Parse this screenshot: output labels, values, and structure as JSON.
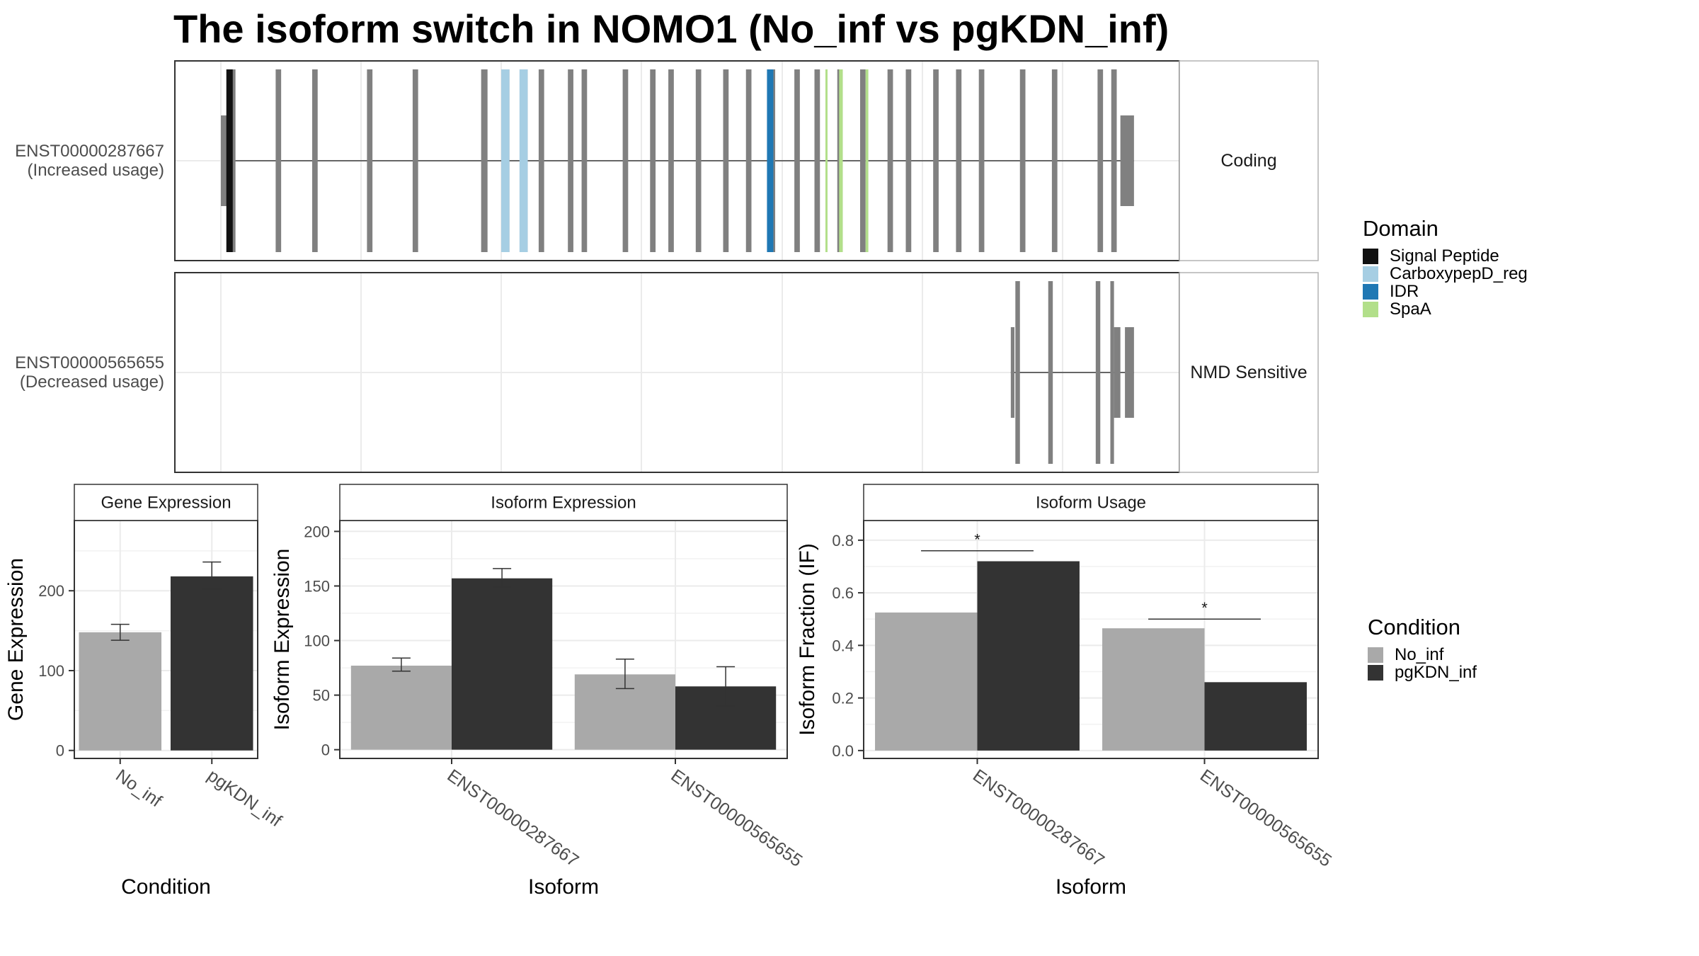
{
  "title": "The isoform switch in NOMO1 (No_inf vs pgKDN_inf)",
  "colors": {
    "exon": "#808080",
    "no_inf": "#a9a9a9",
    "pgkdn_inf": "#333333",
    "signal_peptide": "#111111",
    "carboxypepd_reg": "#a6cee3",
    "idr": "#1f78b4",
    "spaa": "#b2df8a"
  },
  "transcripts": [
    {
      "id": "ENST00000287667",
      "usage": "(Increased usage)",
      "type": "Coding",
      "exons": [
        [
          0.0,
          0.009
        ],
        [
          0.007,
          0.016
        ],
        [
          0.06,
          0.066
        ],
        [
          0.1,
          0.106
        ],
        [
          0.16,
          0.166
        ],
        [
          0.21,
          0.216
        ],
        [
          0.285,
          0.292
        ],
        [
          0.31,
          0.316
        ],
        [
          0.33,
          0.336
        ],
        [
          0.348,
          0.354
        ],
        [
          0.38,
          0.386
        ],
        [
          0.395,
          0.401
        ],
        [
          0.44,
          0.446
        ],
        [
          0.47,
          0.476
        ],
        [
          0.49,
          0.496
        ],
        [
          0.52,
          0.526
        ],
        [
          0.55,
          0.556
        ],
        [
          0.575,
          0.581
        ],
        [
          0.6,
          0.607
        ],
        [
          0.628,
          0.634
        ],
        [
          0.65,
          0.656
        ],
        [
          0.675,
          0.681
        ],
        [
          0.7,
          0.706
        ],
        [
          0.73,
          0.736
        ],
        [
          0.75,
          0.756
        ],
        [
          0.78,
          0.786
        ],
        [
          0.805,
          0.811
        ],
        [
          0.83,
          0.836
        ],
        [
          0.875,
          0.881
        ],
        [
          0.91,
          0.916
        ],
        [
          0.96,
          0.966
        ],
        [
          0.975,
          0.981
        ],
        [
          0.985,
          0.9999
        ]
      ],
      "domains": [
        {
          "name": "Signal Peptide",
          "color": "#111111",
          "bands": [
            [
              0.006,
              0.013
            ]
          ]
        },
        {
          "name": "CarboxypepD_reg",
          "color": "#a6cee3",
          "bands": [
            [
              0.307,
              0.316
            ],
            [
              0.327,
              0.336
            ]
          ]
        },
        {
          "name": "IDR",
          "color": "#1f78b4",
          "bands": [
            [
              0.598,
              0.605
            ]
          ]
        },
        {
          "name": "SpaA",
          "color": "#b2df8a",
          "bands": [
            [
              0.662,
              0.664
            ],
            [
              0.677,
              0.681
            ],
            [
              0.706,
              0.709
            ]
          ]
        }
      ]
    },
    {
      "id": "ENST00000565655",
      "usage": "(Decreased usage)",
      "type": "NMD Sensitive",
      "exons": [
        [
          0.865,
          0.869
        ],
        [
          0.87,
          0.875
        ],
        [
          0.906,
          0.911
        ],
        [
          0.958,
          0.963
        ],
        [
          0.974,
          0.978
        ],
        [
          0.978,
          0.985
        ],
        [
          0.99,
          0.9999
        ]
      ]
    }
  ],
  "legend_domain": {
    "title": "Domain",
    "items": [
      {
        "label": "Signal Peptide",
        "color": "#111111"
      },
      {
        "label": "CarboxypepD_reg",
        "color": "#a6cee3"
      },
      {
        "label": "IDR",
        "color": "#1f78b4"
      },
      {
        "label": "SpaA",
        "color": "#b2df8a"
      }
    ]
  },
  "legend_condition": {
    "title": "Condition",
    "items": [
      {
        "label": "No_inf",
        "color": "#a9a9a9"
      },
      {
        "label": "pgKDN_inf",
        "color": "#333333"
      }
    ]
  },
  "chart_data": [
    {
      "type": "bar",
      "title": "Gene Expression",
      "xlabel": "Condition",
      "ylabel": "Gene Expression",
      "categories": [
        "No_inf",
        "pgKDN_inf"
      ],
      "values": [
        148,
        218
      ],
      "error_low": [
        138,
        202
      ],
      "error_high": [
        158,
        236
      ],
      "ylim": [
        -10,
        288
      ],
      "yticks": [
        0,
        100,
        200
      ]
    },
    {
      "type": "bar",
      "title": "Isoform Expression",
      "xlabel": "Isoform",
      "ylabel": "Isoform Expression",
      "categories": [
        "ENST00000287667",
        "ENST00000565655"
      ],
      "series": [
        {
          "name": "No_inf",
          "values": [
            77,
            69
          ],
          "error_low": [
            72,
            56
          ],
          "error_high": [
            84,
            83
          ]
        },
        {
          "name": "pgKDN_inf",
          "values": [
            157,
            58
          ],
          "error_low": [
            149,
            40
          ],
          "error_high": [
            166,
            76
          ]
        }
      ],
      "ylim": [
        -8,
        210
      ],
      "yticks": [
        0,
        50,
        100,
        150,
        200
      ]
    },
    {
      "type": "bar",
      "title": "Isoform Usage",
      "xlabel": "Isoform",
      "ylabel": "Isoform Fraction (IF)",
      "categories": [
        "ENST00000287667",
        "ENST00000565655"
      ],
      "series": [
        {
          "name": "No_inf",
          "values": [
            0.525,
            0.465
          ]
        },
        {
          "name": "pgKDN_inf",
          "values": [
            0.72,
            0.26
          ]
        }
      ],
      "significance": [
        {
          "label": "*",
          "value": 0.76
        },
        {
          "label": "*",
          "value": 0.5
        }
      ],
      "ylim": [
        -0.03,
        0.875
      ],
      "yticks": [
        0.0,
        0.2,
        0.4,
        0.6,
        0.8
      ],
      "ytick_labels": [
        "0.0",
        "0.2",
        "0.4",
        "0.6",
        "0.8"
      ]
    }
  ]
}
